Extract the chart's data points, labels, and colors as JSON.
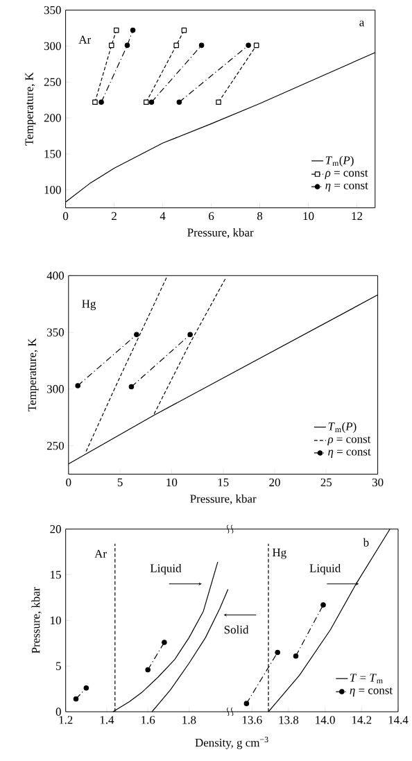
{
  "chart_data": [
    {
      "type": "line",
      "xlabel": "Pressure, kbar",
      "ylabel": "Temperature, K",
      "xlim": [
        0,
        12.75
      ],
      "ylim": [
        75,
        350
      ],
      "xticks": [
        0,
        2,
        4,
        6,
        8,
        10,
        12
      ],
      "yticks": [
        100,
        150,
        200,
        250,
        300,
        350
      ],
      "legend": "bottom right",
      "annotations": [
        "Ar",
        "a"
      ],
      "series": [
        {
          "name": "*T*$_{m}$(*P*)",
          "color": "#000000",
          "line_style": "solid",
          "marker": "none",
          "x": [
            0,
            1,
            2,
            4,
            6,
            8,
            10,
            12.75
          ],
          "values": [
            83,
            109,
            130,
            165,
            192,
            220,
            250,
            291
          ]
        },
        {
          "name": "*ρ* = const",
          "color": "#000000",
          "line_style": "dashed",
          "marker": "square",
          "x": [
            1.21,
            1.89,
            2.09
          ],
          "values": [
            222,
            301,
            322
          ]
        },
        {
          "color": "#000000",
          "line_style": "dashed",
          "marker": "square",
          "x": [
            3.32,
            4.56,
            4.88
          ],
          "values": [
            222,
            301,
            322
          ]
        },
        {
          "color": "#000000",
          "line_style": "dashed",
          "marker": "square",
          "x": [
            6.3,
            7.86
          ],
          "values": [
            222,
            301
          ]
        },
        {
          "name": "*η* = const",
          "color": "#000000",
          "line_style": "dashdot",
          "marker": "circle",
          "x": [
            1.47,
            2.54,
            2.77
          ],
          "values": [
            222,
            301,
            322
          ]
        },
        {
          "color": "#000000",
          "line_style": "dashdot",
          "marker": "circle",
          "x": [
            3.54,
            5.6
          ],
          "values": [
            222,
            301
          ]
        },
        {
          "color": "#000000",
          "line_style": "dashdot",
          "marker": "circle",
          "x": [
            4.68,
            7.53
          ],
          "values": [
            222,
            301
          ]
        }
      ]
    },
    {
      "type": "line",
      "xlabel": "Pressure, kbar",
      "ylabel": "Temperature, K",
      "xlim": [
        0,
        30
      ],
      "ylim": [
        225,
        400
      ],
      "xticks": [
        0,
        5,
        10,
        15,
        20,
        25,
        30
      ],
      "yticks": [
        250,
        300,
        350,
        400
      ],
      "legend": "bottom right",
      "annotations": [
        "Hg"
      ],
      "series": [
        {
          "name": "*T*$_{m}$(*P*)",
          "color": "#000000",
          "line_style": "solid",
          "marker": "none",
          "x": [
            0,
            8.3,
            30
          ],
          "values": [
            234,
            277,
            383
          ]
        },
        {
          "name": "*ρ* = const",
          "color": "#000000",
          "line_style": "dashed",
          "marker": "none",
          "x": [
            1.7,
            4.5,
            9.6
          ],
          "values": [
            245,
            301,
            400
          ]
        },
        {
          "color": "#000000",
          "line_style": "dashed",
          "marker": "none",
          "x": [
            8.3,
            11.7,
            15.2
          ],
          "values": [
            278,
            339,
            397
          ]
        },
        {
          "name": "*η* = const",
          "color": "#000000",
          "line_style": "dashdot",
          "marker": "circle",
          "x": [
            0.9,
            6.6
          ],
          "values": [
            303,
            348
          ]
        },
        {
          "color": "#000000",
          "line_style": "dashdot",
          "marker": "circle",
          "x": [
            6.1,
            11.8
          ],
          "values": [
            302,
            348
          ]
        }
      ]
    },
    {
      "type": "line",
      "xlabel": "Density, g cm$^{−3}$",
      "ylabel": "Pressure, kbar",
      "xlim": [
        1.2,
        2.0
      ],
      "ylim": [
        0,
        20
      ],
      "xticks": [
        1.2,
        1.4,
        1.6,
        1.8
      ],
      "yticks": [
        0,
        5,
        10,
        15,
        20
      ],
      "annotations": [
        "Ar",
        "Liquid",
        "Solid"
      ],
      "series": [
        {
          "color": "#000000",
          "line_style": "dashed",
          "marker": "none",
          "x": [
            1.44,
            1.44
          ],
          "values": [
            0,
            18.4
          ]
        },
        {
          "color": "#000000",
          "line_style": "solid",
          "marker": "none",
          "x": [
            1.43,
            1.51,
            1.57,
            1.65,
            1.73,
            1.8,
            1.87,
            1.94
          ],
          "values": [
            0,
            1.1,
            2.1,
            3.8,
            5.7,
            8.1,
            11.0,
            16.4
          ]
        },
        {
          "color": "#000000",
          "line_style": "solid",
          "marker": "none",
          "x": [
            1.62,
            1.71,
            1.8,
            1.88,
            1.95,
            1.99
          ],
          "values": [
            0,
            2.4,
            5.3,
            8.1,
            11.3,
            13.4
          ]
        },
        {
          "color": "#000000",
          "line_style": "dashdot",
          "marker": "circle",
          "x": [
            1.25,
            1.3
          ],
          "values": [
            1.4,
            2.6
          ]
        },
        {
          "color": "#000000",
          "line_style": "dashdot",
          "marker": "circle",
          "x": [
            1.6,
            1.68
          ],
          "values": [
            4.6,
            7.6
          ]
        }
      ]
    },
    {
      "type": "line",
      "xlim": [
        13.48,
        14.4
      ],
      "ylim": [
        0,
        20
      ],
      "xticks": [
        13.6,
        13.8,
        {
          "value": 14,
          "label": "14.0"
        },
        14.2,
        14.4
      ],
      "tick_labels": "x",
      "legend": "bottom right",
      "annotations": [
        "Hg",
        {
          "text": "Liquid",
          "x": 14.185,
          "y": 14.0
        },
        "b"
      ],
      "series": [
        {
          "name": "*T* = *T*$_{m}$",
          "color": "#000000",
          "line_style": "solid",
          "marker": "none",
          "x": [
            13.69,
            13.86,
            14.03,
            14.17,
            14.355
          ],
          "values": [
            0,
            4.0,
            9.0,
            14.0,
            20
          ]
        },
        {
          "name": "*η* = const",
          "color": "#000000",
          "line_style": "dashdot",
          "marker": "circle",
          "x": [
            13.57,
            13.74
          ],
          "values": [
            0.9,
            6.5
          ]
        },
        {
          "color": "#000000",
          "line_style": "dashdot",
          "marker": "circle",
          "x": [
            13.84,
            13.99
          ],
          "values": [
            6.1,
            11.7
          ]
        },
        {
          "color": "#000000",
          "line_style": "dashed",
          "marker": "none",
          "x": [
            13.69,
            13.69
          ],
          "values": [
            0,
            18.4
          ]
        }
      ]
    }
  ]
}
